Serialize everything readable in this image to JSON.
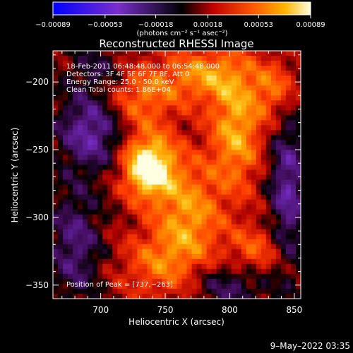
{
  "chart_data": {
    "type": "heatmap",
    "title": "Reconstructed RHESSI Image",
    "xlabel": "Heliocentric X (arcsec)",
    "ylabel": "Heliocentric Y (arcsec)",
    "xlim": [
      663,
      855
    ],
    "ylim": [
      -360,
      -177
    ],
    "x_ticks": [
      700,
      750,
      800,
      850
    ],
    "y_ticks": [
      -200,
      -250,
      -300,
      -350
    ],
    "x_tick_labels": [
      "700",
      "750",
      "800",
      "850"
    ],
    "y_tick_labels": [
      "−200",
      "−250",
      "−300",
      "−350"
    ],
    "colorbar": {
      "vmin": -0.00089,
      "vmax": 0.00089,
      "ticks": [
        -0.00089,
        -0.00053,
        -0.00018,
        0.00018,
        0.00053,
        0.00089
      ],
      "tick_labels": [
        "−0.00089",
        "−0.00053",
        "−0.00018",
        "0.00018",
        "0.00053",
        "0.00089"
      ],
      "unit_label": "(photons cm⁻² s⁻¹ asec⁻²)"
    },
    "info_lines": [
      "18-Feb-2011 06:48:48.000 to 06:54:48.000",
      "Detectors: 3F 4F 5F 6F 7F 8F, Att 0",
      "Energy Range: 25.0 - 50.0 keV",
      "Clean    Total counts: 1.86E+04"
    ],
    "peak_label": "Position of Peak = [737,−263]",
    "peak": {
      "x": 737,
      "y": -263,
      "value": 0.00089
    },
    "features": [
      {
        "x": 737,
        "y": -263,
        "sx": 14,
        "sy": 16,
        "amp": 1.0
      },
      {
        "x": 768,
        "y": -300,
        "sx": 18,
        "sy": 30,
        "amp": 0.55
      },
      {
        "x": 730,
        "y": -210,
        "sx": 20,
        "sy": 18,
        "amp": 0.45
      },
      {
        "x": 805,
        "y": -235,
        "sx": 14,
        "sy": 32,
        "amp": 0.6
      },
      {
        "x": 780,
        "y": -195,
        "sx": 22,
        "sy": 14,
        "amp": 0.5
      },
      {
        "x": 835,
        "y": -205,
        "sx": 12,
        "sy": 16,
        "amp": 0.4
      },
      {
        "x": 742,
        "y": -335,
        "sx": 20,
        "sy": 18,
        "amp": 0.35
      },
      {
        "x": 820,
        "y": -325,
        "sx": 16,
        "sy": 14,
        "amp": 0.35
      },
      {
        "x": 693,
        "y": -235,
        "sx": 18,
        "sy": 20,
        "amp": -0.55
      },
      {
        "x": 680,
        "y": -320,
        "sx": 14,
        "sy": 30,
        "amp": -0.4
      },
      {
        "x": 845,
        "y": -280,
        "sx": 10,
        "sy": 40,
        "amp": -0.5
      },
      {
        "x": 800,
        "y": -350,
        "sx": 22,
        "sy": 12,
        "amp": -0.35
      },
      {
        "x": 700,
        "y": -190,
        "sx": 18,
        "sy": 12,
        "amp": -0.25
      }
    ]
  },
  "footer": {
    "timestamp": "9–May–2022 03:35"
  }
}
